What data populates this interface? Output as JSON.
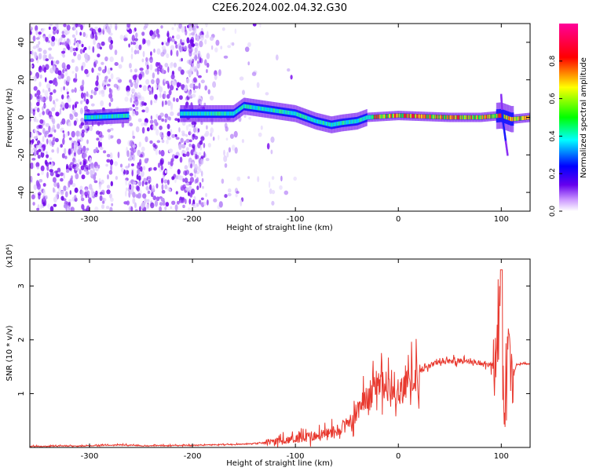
{
  "figure": {
    "title": "C2E6.2024.002.04.32.G30"
  },
  "chart_data": [
    {
      "type": "heatmap",
      "xlabel": "Height of straight line (km)",
      "ylabel": "Frequency (Hz)",
      "xlim": [
        -358,
        128
      ],
      "ylim": [
        -50,
        50
      ],
      "x_ticks": [
        -300,
        -200,
        -100,
        0,
        100
      ],
      "y_ticks": [
        -40,
        -20,
        0,
        20,
        40
      ],
      "colorbar": {
        "label": "Normalized spectral amplitude",
        "range": [
          0.0,
          1.0
        ],
        "ticks": [
          "0.0",
          "0.2",
          "0.4",
          "0.6",
          "0.8"
        ],
        "colors": [
          "#ffffff",
          "#cc99ff",
          "#6600ee",
          "#0000ff",
          "#00ffff",
          "#00ff00",
          "#ffff00",
          "#ff0000",
          "#ff0099"
        ]
      },
      "ridge": {
        "x": [
          -300,
          -260,
          -210,
          -160,
          -150,
          -100,
          -80,
          -65,
          -55,
          -40,
          -30,
          0,
          50,
          80,
          100,
          110,
          128
        ],
        "frequency": [
          0,
          1,
          2,
          2,
          6,
          2,
          -2,
          -4,
          -3,
          -2,
          0,
          1,
          0,
          0,
          1,
          -1,
          0
        ]
      }
    },
    {
      "type": "line",
      "xlabel": "Height of straight line (km)",
      "ylabel": "SNR (10 * v/v)",
      "y_multiplier": "(x10⁴)",
      "xlim": [
        -358,
        128
      ],
      "ylim": [
        0,
        3.5
      ],
      "x_ticks": [
        -300,
        -200,
        -100,
        0,
        100
      ],
      "y_ticks": [
        1,
        2,
        3
      ],
      "series": [
        {
          "color": "#e8382e",
          "x": [
            -358,
            -300,
            -270,
            -250,
            -200,
            -150,
            -120,
            -100,
            -80,
            -60,
            -45,
            -35,
            -25,
            -15,
            -5,
            0,
            10,
            20,
            30,
            40,
            50,
            60,
            70,
            80,
            90,
            95,
            100,
            103,
            106,
            110,
            115,
            128
          ],
          "y": [
            0.02,
            0.03,
            0.05,
            0.03,
            0.04,
            0.06,
            0.1,
            0.15,
            0.2,
            0.3,
            0.5,
            0.8,
            1.1,
            1.2,
            0.9,
            1.0,
            1.2,
            1.4,
            1.5,
            1.6,
            1.6,
            1.6,
            1.6,
            1.55,
            1.55,
            1.7,
            2.2,
            0.3,
            2.0,
            1.2,
            1.55,
            1.55
          ]
        }
      ]
    }
  ]
}
